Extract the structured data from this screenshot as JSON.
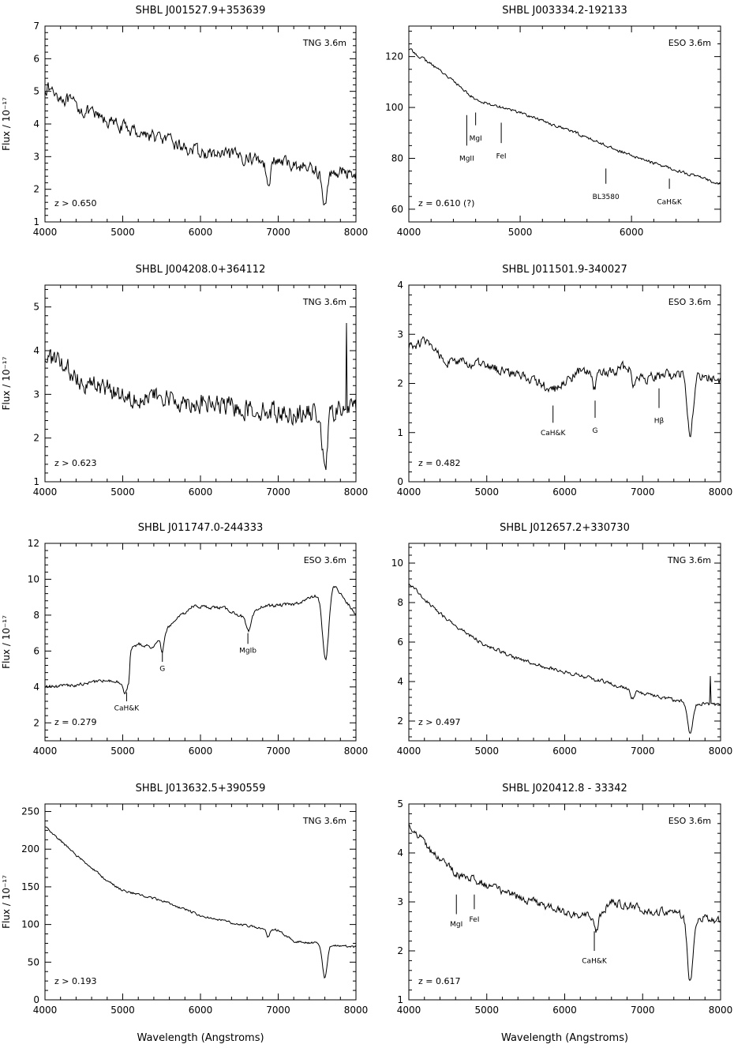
{
  "chart_data": [
    {
      "type": "line",
      "title": "SHBL J001527.9+353639",
      "telescope": "TNG 3.6m",
      "redshift": "z > 0.650",
      "ylabel": "Flux / 10⁻¹⁷",
      "xlabel": "",
      "xlim": [
        4000,
        8000
      ],
      "ylim": [
        1,
        7
      ],
      "xticks": [
        4000,
        5000,
        6000,
        7000,
        8000
      ],
      "yticks": [
        1,
        2,
        3,
        4,
        5,
        6,
        7
      ],
      "noise": 0.17,
      "continuum": [
        [
          4000,
          5.15
        ],
        [
          4500,
          4.4
        ],
        [
          5000,
          3.9
        ],
        [
          5500,
          3.55
        ],
        [
          6000,
          3.1
        ],
        [
          6500,
          3.0
        ],
        [
          7000,
          2.85
        ],
        [
          7500,
          2.6
        ],
        [
          8000,
          2.5
        ]
      ],
      "absorptions": [
        [
          6870,
          0.6,
          30
        ],
        [
          7600,
          1.1,
          35
        ]
      ],
      "lines": []
    },
    {
      "type": "line",
      "title": "SHBL J003334.2-192133",
      "telescope": "ESO 3.6m",
      "redshift": "z = 0.610 (?)",
      "ylabel": "",
      "xlabel": "",
      "xlim": [
        4000,
        6800
      ],
      "ylim": [
        55,
        132
      ],
      "xticks": [
        4000,
        5000,
        6000
      ],
      "yticks": [
        60,
        80,
        100,
        120
      ],
      "noise": 0.5,
      "continuum": [
        [
          4000,
          123
        ],
        [
          4300,
          114
        ],
        [
          4600,
          103
        ],
        [
          5000,
          98
        ],
        [
          5500,
          90
        ],
        [
          6000,
          81
        ],
        [
          6500,
          74
        ],
        [
          6800,
          70
        ]
      ],
      "absorptions": [],
      "lines": [
        {
          "label": "MgII",
          "wl": 4520,
          "top": 97,
          "bottom": 85,
          "textY": 79
        },
        {
          "label": "MgI",
          "wl": 4600,
          "top": 98,
          "bottom": 93,
          "textY": 87
        },
        {
          "label": "FeI",
          "wl": 4830,
          "top": 94,
          "bottom": 86,
          "textY": 80
        },
        {
          "label": "BL3580",
          "wl": 5770,
          "top": 76,
          "bottom": 70,
          "textY": 64
        },
        {
          "label": "CaH&K",
          "wl": 6340,
          "top": 72,
          "bottom": 68,
          "textY": 62
        }
      ]
    },
    {
      "type": "line",
      "title": "SHBL J004208.0+364112",
      "telescope": "TNG 3.6m",
      "redshift": "z > 0.623",
      "ylabel": "Flux / 10⁻¹⁷",
      "xlabel": "",
      "xlim": [
        4000,
        8000
      ],
      "ylim": [
        1,
        5.5
      ],
      "xticks": [
        4000,
        5000,
        6000,
        7000,
        8000
      ],
      "yticks": [
        1,
        2,
        3,
        4,
        5
      ],
      "noise": 0.2,
      "continuum": [
        [
          4000,
          3.9
        ],
        [
          4500,
          3.3
        ],
        [
          5000,
          3.0
        ],
        [
          5500,
          2.9
        ],
        [
          6000,
          2.8
        ],
        [
          6500,
          2.7
        ],
        [
          7000,
          2.6
        ],
        [
          7500,
          2.55
        ],
        [
          8000,
          2.7
        ]
      ],
      "absorptions": [
        [
          7600,
          1.4,
          30
        ]
      ],
      "spikes": [
        [
          7880,
          4.6
        ]
      ],
      "lines": []
    },
    {
      "type": "line",
      "title": "SHBL J011501.9-340027",
      "telescope": "ESO 3.6m",
      "redshift": "z = 0.482",
      "ylabel": "",
      "xlabel": "",
      "xlim": [
        4000,
        8000
      ],
      "ylim": [
        0,
        4
      ],
      "xticks": [
        4000,
        5000,
        6000,
        7000,
        8000
      ],
      "yticks": [
        0,
        1,
        2,
        3,
        4
      ],
      "noise": 0.09,
      "continuum": [
        [
          4000,
          2.75
        ],
        [
          4200,
          2.85
        ],
        [
          4500,
          2.45
        ],
        [
          5000,
          2.35
        ],
        [
          5500,
          2.15
        ],
        [
          5850,
          1.85
        ],
        [
          6200,
          2.25
        ],
        [
          6500,
          2.2
        ],
        [
          6800,
          2.35
        ],
        [
          7000,
          2.1
        ],
        [
          7500,
          2.2
        ],
        [
          8000,
          2.05
        ]
      ],
      "absorptions": [
        [
          6380,
          0.35,
          25
        ],
        [
          6880,
          0.3,
          20
        ],
        [
          7610,
          1.3,
          35
        ]
      ],
      "lines": [
        {
          "label": "CaH&K",
          "wl": 5850,
          "top": 1.55,
          "bottom": 1.2,
          "textY": 0.95
        },
        {
          "label": "G",
          "wl": 6390,
          "top": 1.65,
          "bottom": 1.3,
          "textY": 1.0
        },
        {
          "label": "Hβ",
          "wl": 7210,
          "top": 1.9,
          "bottom": 1.5,
          "textY": 1.2
        }
      ]
    },
    {
      "type": "line",
      "title": "SHBL J011747.0-244333",
      "telescope": "ESO 3.6m",
      "redshift": "z = 0.279",
      "ylabel": "Flux / 10⁻¹⁷",
      "xlabel": "",
      "xlim": [
        4000,
        8000
      ],
      "ylim": [
        1,
        12
      ],
      "xticks": [
        4000,
        5000,
        6000,
        7000,
        8000
      ],
      "yticks": [
        2,
        4,
        6,
        8,
        10,
        12
      ],
      "noise": 0.08,
      "continuum": [
        [
          4000,
          4.0
        ],
        [
          4400,
          4.1
        ],
        [
          4800,
          4.4
        ],
        [
          5000,
          4.2
        ],
        [
          5080,
          4.3
        ],
        [
          5100,
          6.1
        ],
        [
          5200,
          6.4
        ],
        [
          5400,
          6.2
        ],
        [
          5600,
          7.4
        ],
        [
          5900,
          8.5
        ],
        [
          6300,
          8.4
        ],
        [
          6600,
          7.8
        ],
        [
          6800,
          8.5
        ],
        [
          7200,
          8.6
        ],
        [
          7500,
          9.1
        ],
        [
          7700,
          9.8
        ],
        [
          8000,
          8.0
        ]
      ],
      "absorptions": [
        [
          5030,
          0.6,
          25
        ],
        [
          5510,
          0.9,
          20
        ],
        [
          6620,
          0.8,
          30
        ],
        [
          7610,
          4.0,
          40
        ]
      ],
      "lines": [
        {
          "label": "CaH&K",
          "wl": 5050,
          "top": 3.7,
          "bottom": 3.2,
          "textY": 2.7
        },
        {
          "label": "G",
          "wl": 5510,
          "top": 6.0,
          "bottom": 5.4,
          "textY": 4.9
        },
        {
          "label": "MgIb",
          "wl": 6610,
          "top": 7.0,
          "bottom": 6.4,
          "textY": 5.9
        }
      ]
    },
    {
      "type": "line",
      "title": "SHBL J012657.2+330730",
      "telescope": "TNG 3.6m",
      "redshift": "z > 0.497",
      "ylabel": "",
      "xlabel": "",
      "xlim": [
        4000,
        8000
      ],
      "ylim": [
        1,
        11
      ],
      "xticks": [
        4000,
        5000,
        6000,
        7000,
        8000
      ],
      "yticks": [
        2,
        4,
        6,
        8,
        10
      ],
      "noise": 0.08,
      "continuum": [
        [
          4000,
          9.0
        ],
        [
          4300,
          7.8
        ],
        [
          4600,
          6.8
        ],
        [
          5000,
          5.8
        ],
        [
          5500,
          5.0
        ],
        [
          6000,
          4.5
        ],
        [
          6500,
          4.0
        ],
        [
          7000,
          3.4
        ],
        [
          7500,
          3.0
        ],
        [
          8000,
          2.8
        ]
      ],
      "absorptions": [
        [
          6870,
          0.4,
          25
        ],
        [
          7610,
          1.6,
          35
        ]
      ],
      "spikes": [
        [
          7870,
          4.3
        ]
      ],
      "lines": []
    },
    {
      "type": "line",
      "title": "SHBL J013632.5+390559",
      "telescope": "TNG 3.6m",
      "redshift": "z > 0.193",
      "ylabel": "Flux / 10⁻¹⁷",
      "xlabel": "Wavelength (Angstroms)",
      "xlim": [
        4000,
        8000
      ],
      "ylim": [
        0,
        260
      ],
      "xticks": [
        4000,
        5000,
        6000,
        7000,
        8000
      ],
      "yticks": [
        0,
        50,
        100,
        150,
        200,
        250
      ],
      "noise": 1.3,
      "continuum": [
        [
          4000,
          230
        ],
        [
          4400,
          192
        ],
        [
          4800,
          158
        ],
        [
          5000,
          145
        ],
        [
          5500,
          132
        ],
        [
          6000,
          112
        ],
        [
          6500,
          100
        ],
        [
          7000,
          92
        ],
        [
          7200,
          78
        ],
        [
          7500,
          75
        ],
        [
          8000,
          70
        ]
      ],
      "absorptions": [
        [
          6870,
          10,
          20
        ],
        [
          7600,
          45,
          30
        ]
      ],
      "lines": []
    },
    {
      "type": "line",
      "title": "SHBL J020412.8 - 33342",
      "telescope": "ESO 3.6m",
      "redshift": "z = 0.617",
      "ylabel": "",
      "xlabel": "Wavelength (Angstroms)",
      "xlim": [
        4000,
        8000
      ],
      "ylim": [
        1,
        5
      ],
      "xticks": [
        4000,
        5000,
        6000,
        7000,
        8000
      ],
      "yticks": [
        1,
        2,
        3,
        4,
        5
      ],
      "noise": 0.07,
      "continuum": [
        [
          4000,
          4.6
        ],
        [
          4300,
          4.0
        ],
        [
          4600,
          3.6
        ],
        [
          5000,
          3.35
        ],
        [
          5500,
          3.05
        ],
        [
          6000,
          2.8
        ],
        [
          6400,
          2.65
        ],
        [
          6600,
          3.0
        ],
        [
          7000,
          2.85
        ],
        [
          7500,
          2.75
        ],
        [
          8000,
          2.6
        ]
      ],
      "absorptions": [
        [
          6400,
          0.3,
          25
        ],
        [
          7610,
          1.35,
          35
        ]
      ],
      "lines": [
        {
          "label": "MgI",
          "wl": 4610,
          "top": 3.15,
          "bottom": 2.75,
          "textY": 2.5
        },
        {
          "label": "FeI",
          "wl": 4840,
          "top": 3.15,
          "bottom": 2.85,
          "textY": 2.6
        },
        {
          "label": "CaH&K",
          "wl": 6380,
          "top": 2.4,
          "bottom": 2.0,
          "textY": 1.75
        }
      ]
    }
  ]
}
